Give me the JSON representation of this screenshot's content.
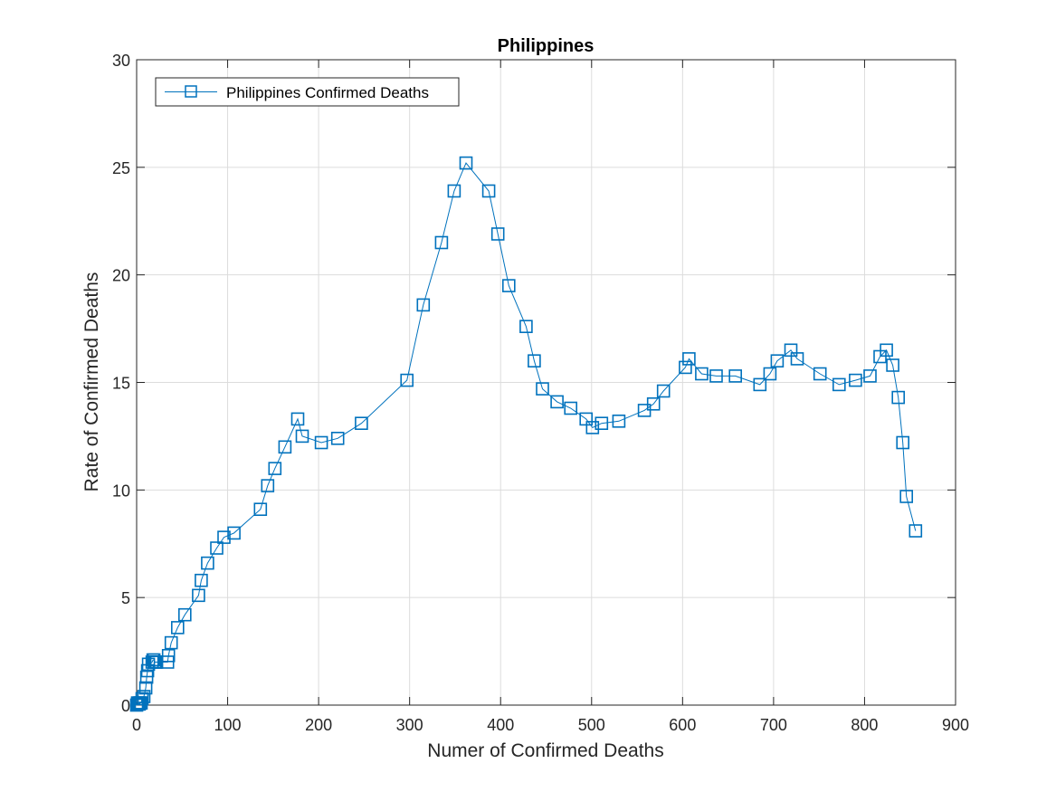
{
  "chart_data": {
    "type": "line",
    "title": "Philippines",
    "xlabel": "Numer of Confirmed Deaths",
    "ylabel": "Rate of Confirmed Deaths",
    "xlim": [
      0,
      900
    ],
    "ylim": [
      0,
      30
    ],
    "xticks": [
      0,
      100,
      200,
      300,
      400,
      500,
      600,
      700,
      800,
      900
    ],
    "yticks": [
      0,
      5,
      10,
      15,
      20,
      25,
      30
    ],
    "grid": true,
    "legend_position": "top-left",
    "marker": "square",
    "series": [
      {
        "name": "Philippines Confirmed Deaths",
        "color": "#0072BD",
        "x": [
          0,
          1,
          1,
          2,
          3,
          3,
          4,
          5,
          6,
          8,
          10,
          11,
          12,
          13,
          17,
          18,
          19,
          20,
          21,
          22,
          34,
          35,
          38,
          45,
          53,
          68,
          71,
          78,
          88,
          96,
          107,
          136,
          144,
          152,
          163,
          177,
          182,
          203,
          221,
          247,
          297,
          315,
          335,
          349,
          362,
          387,
          397,
          409,
          428,
          437,
          446,
          462,
          477,
          494,
          501,
          511,
          530,
          558,
          568,
          579,
          603,
          607,
          621,
          637,
          658,
          685,
          696,
          704,
          719,
          726,
          751,
          772,
          790,
          806,
          817,
          824,
          831,
          837,
          842,
          846,
          856
        ],
        "y": [
          0,
          0.05,
          0.1,
          0.05,
          0.1,
          0.05,
          0.1,
          0.1,
          0.3,
          0.4,
          0.8,
          1.3,
          1.6,
          1.9,
          2.0,
          2.1,
          2.1,
          2.0,
          2.0,
          2.0,
          2.0,
          2.3,
          2.9,
          3.6,
          4.2,
          5.1,
          5.8,
          6.6,
          7.3,
          7.8,
          8.0,
          9.1,
          10.2,
          11.0,
          12.0,
          13.3,
          12.5,
          12.2,
          12.4,
          13.1,
          15.1,
          18.6,
          21.5,
          23.9,
          25.2,
          23.9,
          21.9,
          19.5,
          17.6,
          16.0,
          14.7,
          14.1,
          13.8,
          13.3,
          12.9,
          13.1,
          13.2,
          13.7,
          14.0,
          14.6,
          15.7,
          16.1,
          15.4,
          15.3,
          15.3,
          14.9,
          15.4,
          16.0,
          16.5,
          16.1,
          15.4,
          14.9,
          15.1,
          15.3,
          16.2,
          16.5,
          15.8,
          14.3,
          12.2,
          9.7,
          8.1
        ]
      }
    ]
  }
}
